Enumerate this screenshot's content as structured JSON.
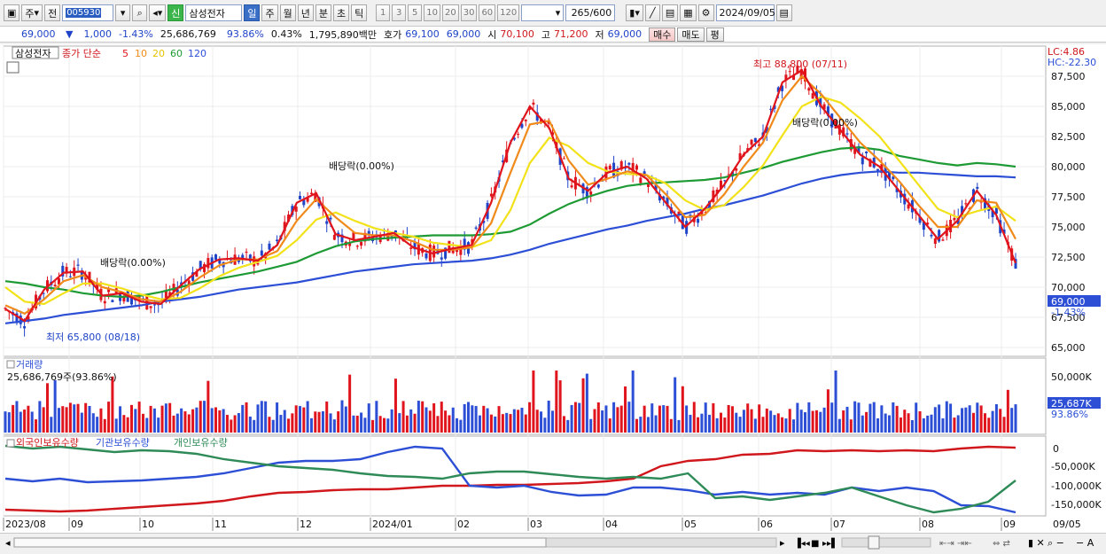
{
  "toolbar": {
    "period_btn": "주",
    "prev_btn": "전",
    "stock_code": "005930",
    "shin_badge": "신",
    "stock_name": "삼성전자",
    "period_tabs": [
      "일",
      "주",
      "월",
      "년",
      "분",
      "초",
      "틱"
    ],
    "minute_options": [
      "1",
      "3",
      "5",
      "10",
      "20",
      "30",
      "60",
      "120"
    ],
    "count_value": "265",
    "count_total": "/600",
    "date_value": "2024/09/05"
  },
  "quote": {
    "price": "69,000",
    "change": "1,000",
    "change_pct": "-1.43%",
    "volume": "25,686,769",
    "volume_ratio": "93.86%",
    "turnover": "0.43%",
    "amount": "1,795,890백만",
    "hoga_label": "호가",
    "bid": "69,100",
    "ask": "69,000",
    "open_label": "시",
    "open": "70,100",
    "high_label": "고",
    "high": "71,200",
    "low_label": "저",
    "low": "69,000",
    "buy_button": "매수",
    "sell_button": "매도",
    "eval_button": "평"
  },
  "legend": {
    "stock_tag": "삼성전자",
    "ma_label": "종가 단순",
    "ma_periods": [
      "5",
      "10",
      "20",
      "60",
      "120"
    ],
    "ma_colors": [
      "#e0141c",
      "#f08a1a",
      "#f2e21a",
      "#1e9a34",
      "#2c4fd6"
    ]
  },
  "price_panel": {
    "lc": "LC:4.86",
    "hc": "HC:-22.30",
    "y_ticks": [
      "87,500",
      "85,000",
      "82,500",
      "80,000",
      "77,500",
      "75,000",
      "72,500",
      "70,000",
      "67,500",
      "65,000"
    ],
    "current_price": "69,000",
    "current_pct": "-1.43%",
    "high_annotation": "최고 88,800 (07/11)",
    "low_annotation": "최저 65,800 (08/18)",
    "dividend_labels": [
      "배당락(0.00%)",
      "배당락(0.00%)",
      "배당락(0.00%)"
    ]
  },
  "volume_panel": {
    "title": "거래량",
    "value": "25,686,769주(93.86%)",
    "y_tick": "50,000K",
    "current_tag": "25,687K",
    "current_pct": "93.86%"
  },
  "holding_panel": {
    "legend": [
      "외국인보유수량",
      "기관보유수량",
      "개인보유수량"
    ],
    "legend_colors": [
      "#d0171c",
      "#2c4fd6",
      "#2e8b57"
    ],
    "y_ticks": [
      "0",
      "-50,000K",
      "-100,000K",
      "-150,000K"
    ]
  },
  "x_axis": {
    "labels": [
      "2023/08",
      "09",
      "10",
      "11",
      "12",
      "2024/01",
      "02",
      "03",
      "04",
      "05",
      "06",
      "07",
      "08",
      "09",
      "09/05"
    ]
  },
  "chart_data": {
    "type": "candlestick",
    "series": [
      {
        "name": "5",
        "color": "#e0141c",
        "values": [
          68200,
          67200,
          69800,
          71200,
          71300,
          69300,
          69500,
          68800,
          68600,
          70100,
          71500,
          72300,
          72400,
          72200,
          73500,
          77000,
          77800,
          74400,
          73900,
          74200,
          74500,
          73300,
          72800,
          73200,
          73500,
          77000,
          82000,
          85000,
          83200,
          79000,
          78000,
          79500,
          80000,
          79000,
          77000,
          75000,
          76500,
          78500,
          81000,
          82500,
          87000,
          88000,
          85000,
          83000,
          81000,
          80000,
          78000,
          76000,
          74000,
          75500,
          78000,
          76000,
          72000
        ]
      },
      {
        "name": "10",
        "color": "#f08a1a",
        "values": [
          68500,
          67800,
          69000,
          70500,
          71000,
          70000,
          69600,
          69000,
          68800,
          69600,
          70800,
          71800,
          72300,
          72300,
          73000,
          75500,
          77300,
          75800,
          74500,
          74300,
          74300,
          73800,
          73100,
          73100,
          73300,
          75300,
          79500,
          83500,
          83800,
          80500,
          78500,
          79000,
          79600,
          79300,
          77700,
          75800,
          76000,
          77700,
          80000,
          82000,
          85500,
          87500,
          86000,
          84000,
          82000,
          80500,
          78800,
          76800,
          75000,
          75000,
          77200,
          77000,
          74000
        ]
      },
      {
        "name": "20",
        "color": "#f2e21a",
        "values": [
          70000,
          68800,
          68600,
          69500,
          70300,
          70300,
          69900,
          69400,
          69000,
          69100,
          69900,
          70900,
          71600,
          72100,
          72600,
          73900,
          75600,
          76200,
          75500,
          74900,
          74500,
          74200,
          73700,
          73500,
          73300,
          73900,
          76400,
          80300,
          82400,
          81700,
          80300,
          79600,
          79400,
          79300,
          78600,
          77200,
          76400,
          76800,
          78300,
          80100,
          82600,
          85000,
          85800,
          85300,
          84000,
          82500,
          80500,
          78500,
          76500,
          75800,
          76300,
          76700,
          75500
        ]
      },
      {
        "name": "60",
        "color": "#1e9a34",
        "values": [
          70500,
          70300,
          70000,
          69800,
          69500,
          69300,
          69200,
          69300,
          69600,
          70000,
          70400,
          70700,
          71000,
          71300,
          71700,
          72100,
          72800,
          73400,
          73800,
          74000,
          74100,
          74200,
          74300,
          74300,
          74300,
          74400,
          74600,
          75200,
          76100,
          76900,
          77500,
          78000,
          78400,
          78600,
          78700,
          78800,
          78900,
          79100,
          79500,
          79900,
          80400,
          80800,
          81200,
          81500,
          81600,
          81400,
          80900,
          80600,
          80300,
          80100,
          80300,
          80200,
          80000
        ]
      },
      {
        "name": "120",
        "color": "#2c4fd6",
        "values": [
          67000,
          67200,
          67400,
          67700,
          67900,
          68100,
          68300,
          68500,
          68800,
          69000,
          69200,
          69500,
          69800,
          70000,
          70200,
          70400,
          70700,
          71000,
          71300,
          71500,
          71700,
          71900,
          72000,
          72100,
          72200,
          72400,
          72700,
          73100,
          73600,
          74000,
          74400,
          74800,
          75100,
          75500,
          75800,
          76100,
          76500,
          76800,
          77200,
          77600,
          78100,
          78600,
          79000,
          79300,
          79500,
          79600,
          79500,
          79500,
          79400,
          79300,
          79200,
          79200,
          79100
        ]
      }
    ]
  }
}
